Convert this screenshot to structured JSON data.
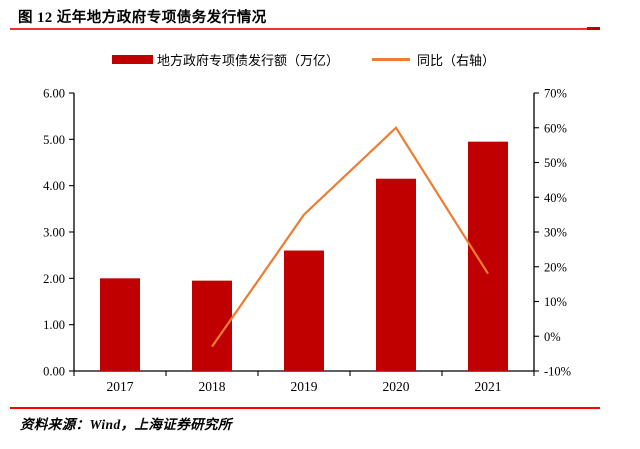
{
  "figure": {
    "title": "图 12 近年地方政府专项债务发行情况",
    "source": "资料来源：Wind，上海证券研究所"
  },
  "legend": [
    {
      "label": "地方政府专项债发行额（万亿）",
      "swatch": "bar-swatch",
      "color": "#c00000"
    },
    {
      "label": "同比（右轴）",
      "swatch": "line-swatch",
      "color": "#ed7d31"
    }
  ],
  "colors": {
    "bar": "#c00000",
    "line": "#ed7d31",
    "title_rule": "#ff2d2d",
    "title_rule_end": "#c00000",
    "source_rule": "#ff0000",
    "axis": "#000000"
  },
  "chart_data": {
    "type": "bar",
    "subtype": "bar+line-dual-axis",
    "categories": [
      "2017",
      "2018",
      "2019",
      "2020",
      "2021"
    ],
    "series": [
      {
        "name": "地方政府专项债发行额（万亿）",
        "type": "bar",
        "axis": "left",
        "values": [
          2.0,
          1.95,
          2.6,
          4.15,
          4.95
        ]
      },
      {
        "name": "同比（右轴）",
        "type": "line",
        "axis": "right",
        "unit": "%",
        "values": [
          null,
          -3,
          35,
          60,
          18
        ]
      }
    ],
    "left_axis": {
      "min": 0,
      "max": 6,
      "step": 1,
      "tick_labels": [
        "0.00",
        "1.00",
        "2.00",
        "3.00",
        "4.00",
        "5.00",
        "6.00"
      ]
    },
    "right_axis": {
      "min": -10,
      "max": 70,
      "step": 10,
      "tick_labels": [
        "-10%",
        "0%",
        "10%",
        "20%",
        "30%",
        "40%",
        "50%",
        "60%",
        "70%"
      ]
    },
    "grid": false,
    "legend_position": "top"
  }
}
